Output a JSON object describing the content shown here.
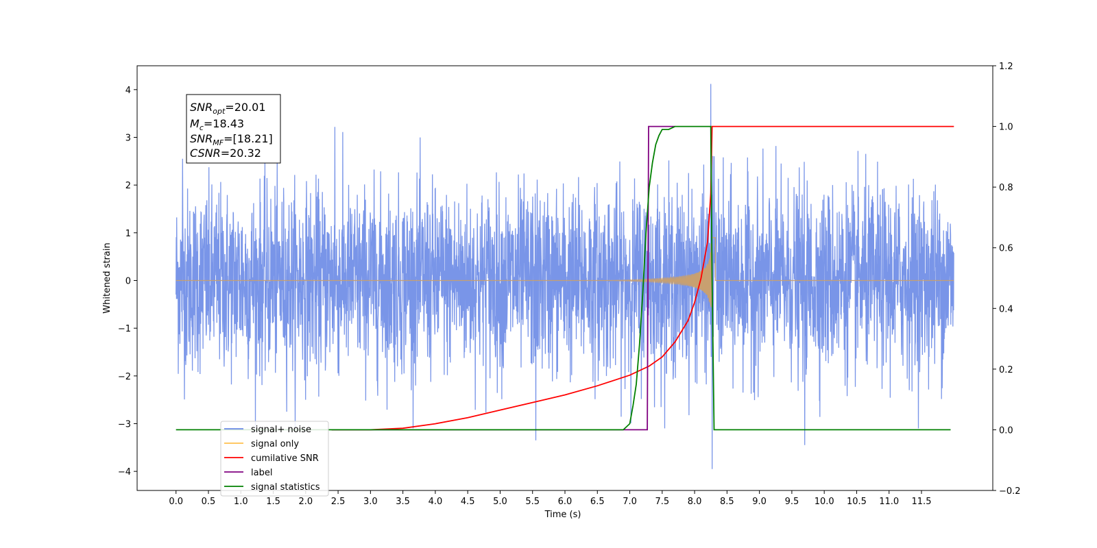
{
  "chart_data": {
    "type": "line",
    "xlabel": "Time (s)",
    "ylabel": "Whitened strain",
    "xlim": [
      -0.6,
      12.6
    ],
    "ylim_left": [
      -4.4,
      4.5
    ],
    "ylim_right": [
      -0.2,
      1.2
    ],
    "xticks": [
      "0.0",
      "0.5",
      "1.0",
      "1.5",
      "2.0",
      "2.5",
      "3.0",
      "3.5",
      "4.0",
      "4.5",
      "5.0",
      "5.5",
      "6.0",
      "6.5",
      "7.0",
      "7.5",
      "8.0",
      "8.5",
      "9.0",
      "9.5",
      "10.0",
      "10.5",
      "11.0",
      "11.5"
    ],
    "yticks_left": [
      "4",
      "3",
      "2",
      "1",
      "0",
      "−1",
      "−2",
      "−3",
      "−4"
    ],
    "yticks_right": [
      "1.2",
      "1.0",
      "0.8",
      "0.6",
      "0.4",
      "0.2",
      "0.0",
      "−0.2"
    ],
    "annotation": {
      "snr_opt": "=20.01",
      "mc": "=18.43",
      "snr_mf": "=[18.21]",
      "csnr": "=20.32"
    },
    "legend_position": "lower-left",
    "legend": [
      {
        "label": "signal+ noise",
        "color": "#6a89e6"
      },
      {
        "label": "signal only",
        "color": "#ffc04d"
      },
      {
        "label": "cumilative SNR",
        "color": "#ff0000"
      },
      {
        "label": "label",
        "color": "#800080"
      },
      {
        "label": "signal statistics",
        "color": "#008000"
      }
    ],
    "series": [
      {
        "name": "signal+ noise",
        "axis": "left",
        "color": "#6a89e6",
        "t_range": [
          0.0,
          12.0
        ],
        "amplitude_envelope": [
          -3.1,
          3.2
        ],
        "peak_points": [
          {
            "x": 8.25,
            "y": 4.12
          },
          {
            "x": 8.27,
            "y": -3.95
          },
          {
            "x": 9.7,
            "y": -3.45
          },
          {
            "x": 5.55,
            "y": -3.35
          },
          {
            "x": 0.1,
            "y": 2.55
          },
          {
            "x": 2.45,
            "y": 3.22
          }
        ]
      },
      {
        "name": "signal only",
        "axis": "left",
        "color": "#c8a070",
        "chirp": {
          "t_start": 3.5,
          "t_merger": 8.27,
          "peak_amplitude": 2.3
        }
      },
      {
        "name": "cumilative SNR",
        "axis": "right",
        "color": "#ff0000",
        "x": [
          2.4,
          3.0,
          3.5,
          4.0,
          4.5,
          5.0,
          5.5,
          6.0,
          6.5,
          7.0,
          7.3,
          7.5,
          7.7,
          7.9,
          8.0,
          8.1,
          8.2,
          8.25,
          8.27,
          12.0
        ],
        "y": [
          0.0,
          0.0,
          0.005,
          0.02,
          0.04,
          0.065,
          0.09,
          0.115,
          0.145,
          0.18,
          0.21,
          0.24,
          0.29,
          0.36,
          0.42,
          0.5,
          0.62,
          0.78,
          1.0,
          1.0
        ]
      },
      {
        "name": "label",
        "axis": "right",
        "color": "#800080",
        "x": [
          2.4,
          7.27,
          7.29,
          7.7
        ],
        "y": [
          0.0,
          0.0,
          1.0,
          1.0
        ]
      },
      {
        "name": "signal statistics",
        "axis": "right",
        "color": "#008000",
        "x": [
          0.0,
          6.9,
          7.0,
          7.05,
          7.1,
          7.15,
          7.2,
          7.25,
          7.3,
          7.35,
          7.4,
          7.45,
          7.5,
          7.55,
          7.6,
          7.7,
          8.0,
          8.25,
          8.27,
          8.3,
          11.95
        ],
        "y": [
          0.0,
          0.0,
          0.02,
          0.08,
          0.15,
          0.28,
          0.45,
          0.65,
          0.8,
          0.88,
          0.94,
          0.97,
          0.99,
          0.99,
          0.99,
          1.0,
          1.0,
          1.0,
          0.5,
          0.0,
          0.0
        ]
      }
    ]
  }
}
